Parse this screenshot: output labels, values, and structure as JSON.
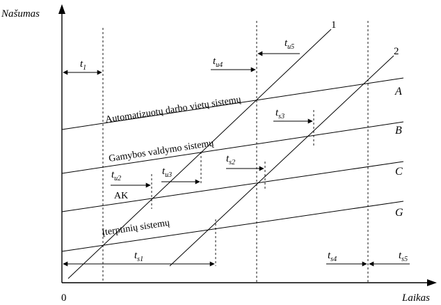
{
  "axes": {
    "y_label": "Našumas",
    "x_label": "Laikas",
    "origin": "0"
  },
  "growth_lines": [
    {
      "id": "A",
      "letter": "A",
      "caption": "Automatizuotų darbo vietų sistemų"
    },
    {
      "id": "B",
      "letter": "B",
      "caption": "Gamybos valdymo sistemų"
    },
    {
      "id": "C",
      "letter": "C",
      "caption": "AK"
    },
    {
      "id": "G",
      "letter": "G",
      "caption": "Įterptinių sistemų"
    }
  ],
  "diagonals": [
    {
      "id": "1",
      "label": "1"
    },
    {
      "id": "2",
      "label": "2"
    }
  ],
  "intervals": [
    {
      "id": "t1",
      "main": "t",
      "sub": "1"
    },
    {
      "id": "tu4",
      "main": "t",
      "sub": "u4"
    },
    {
      "id": "tu5",
      "main": "t",
      "sub": "u5"
    },
    {
      "id": "ts3",
      "main": "t",
      "sub": "s3"
    },
    {
      "id": "ts2",
      "main": "t",
      "sub": "s2"
    },
    {
      "id": "tu2",
      "main": "t",
      "sub": "u2"
    },
    {
      "id": "tu3",
      "main": "t",
      "sub": "u3"
    },
    {
      "id": "ts1",
      "main": "t",
      "sub": "s1"
    },
    {
      "id": "ts4",
      "main": "t",
      "sub": "s4"
    },
    {
      "id": "ts5",
      "main": "t",
      "sub": "s5"
    }
  ]
}
